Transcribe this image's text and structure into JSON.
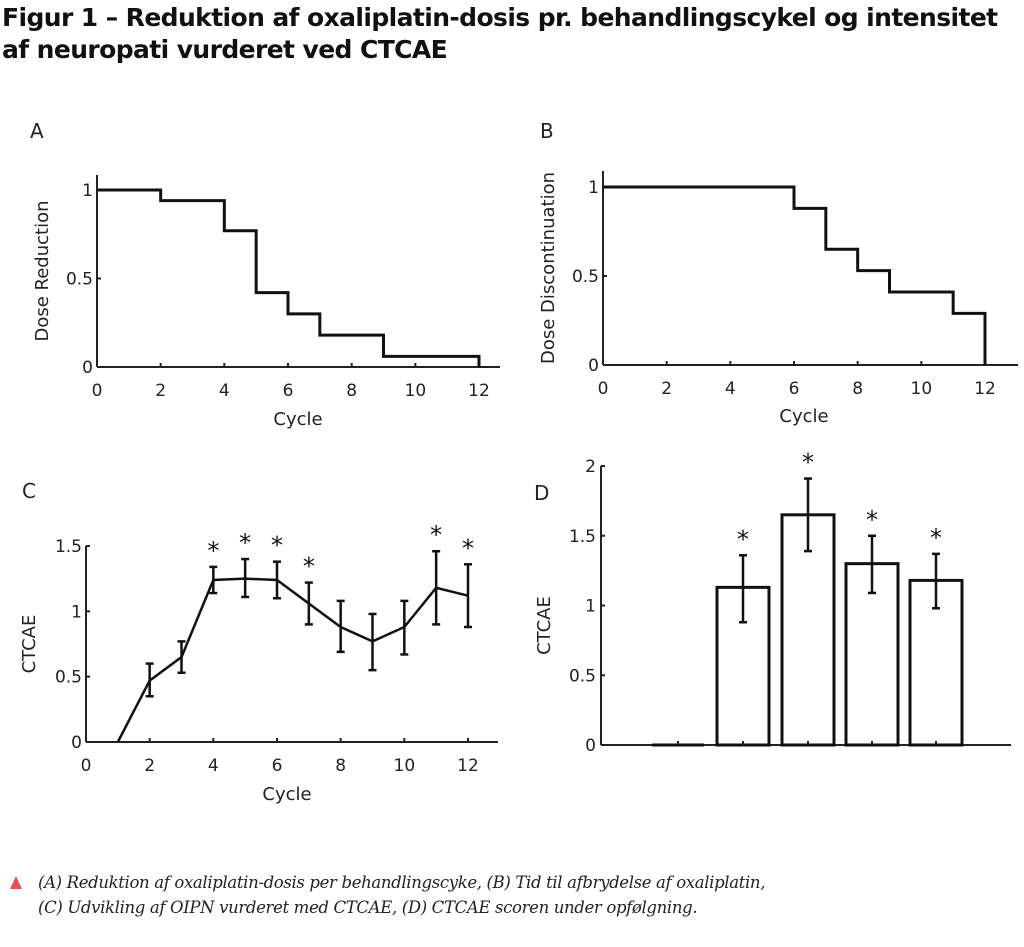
{
  "title": "Figur 1 – Reduktion af oxaliplatin-dosis pr. behandlingscykel og intensitet af neuropati vurderet ved CTCAE",
  "caption": {
    "line1": "(A) Reduktion af oxaliplatin-dosis per behandlingscyke, (B) Tid til afbrydelse af oxaliplatin,",
    "line2": "(C) Udvikling af OIPN vurderet med CTCAE, (D) CTCAE scoren under opfølgning.",
    "marker_icon": "triangle-up-icon",
    "marker_color": "#e8505b"
  },
  "chart_data": [
    {
      "panel": "A",
      "type": "line",
      "step": true,
      "title": "",
      "xlabel": "Cycle",
      "ylabel": "Dose Reduction",
      "xlim": [
        0,
        12.8
      ],
      "ylim": [
        0,
        1.08
      ],
      "xticks": [
        0,
        2,
        4,
        6,
        8,
        10,
        12
      ],
      "xtick_labels": [
        "0",
        "2",
        "4",
        "6",
        "8",
        "10",
        "12"
      ],
      "yticks": [
        0,
        0.5,
        1
      ],
      "ytick_labels": [
        "0",
        "0.5",
        "1"
      ],
      "x": [
        0,
        2,
        4,
        5,
        6,
        7,
        9,
        12
      ],
      "y": [
        1,
        0.94,
        0.77,
        0.42,
        0.3,
        0.18,
        0.06,
        0
      ],
      "grid": false
    },
    {
      "panel": "B",
      "type": "line",
      "step": true,
      "title": "",
      "xlabel": "Cycle",
      "ylabel": "Dose Discontinuation",
      "xlim": [
        0,
        12.8
      ],
      "ylim": [
        0,
        1.08
      ],
      "xticks": [
        0,
        2,
        4,
        6,
        8,
        10,
        12
      ],
      "xtick_labels": [
        "0",
        "2",
        "4",
        "6",
        "8",
        "10",
        "12"
      ],
      "yticks": [
        0,
        0.5,
        1
      ],
      "ytick_labels": [
        "0",
        "0.5",
        "1"
      ],
      "x": [
        0,
        6,
        7,
        8,
        9,
        11,
        12
      ],
      "y": [
        1,
        0.88,
        0.65,
        0.53,
        0.41,
        0.29,
        0
      ],
      "grid": false
    },
    {
      "panel": "C",
      "type": "line",
      "title": "",
      "xlabel": "Cycle",
      "ylabel": "CTCAE",
      "xlim": [
        0,
        12.8
      ],
      "ylim": [
        0,
        1.5
      ],
      "xticks": [
        0,
        2,
        4,
        6,
        8,
        10,
        12
      ],
      "xtick_labels": [
        "0",
        "2",
        "4",
        "6",
        "8",
        "10",
        "12"
      ],
      "yticks": [
        0,
        0.5,
        1,
        1.5
      ],
      "ytick_labels": [
        "0",
        "0.5",
        "1",
        "1.5"
      ],
      "x": [
        1,
        2,
        3,
        4,
        5,
        6,
        7,
        8,
        9,
        10,
        11,
        12
      ],
      "y": [
        0,
        0.47,
        0.65,
        1.24,
        1.25,
        1.24,
        1.06,
        0.88,
        0.77,
        0.88,
        1.18,
        1.12
      ],
      "err_low": [
        null,
        0.35,
        0.53,
        1.14,
        1.11,
        1.1,
        0.9,
        0.69,
        0.55,
        0.67,
        0.9,
        0.88
      ],
      "err_high": [
        null,
        0.6,
        0.77,
        1.34,
        1.4,
        1.38,
        1.22,
        1.08,
        0.98,
        1.08,
        1.46,
        1.36
      ],
      "significant": [
        false,
        false,
        false,
        true,
        true,
        true,
        true,
        false,
        false,
        false,
        true,
        true
      ],
      "significance_label": "*",
      "grid": false
    },
    {
      "panel": "D",
      "type": "bar",
      "title": "",
      "xlabel": "",
      "ylabel": "CTCAE",
      "ylim": [
        0,
        2
      ],
      "yticks": [
        0,
        0.5,
        1,
        1.5,
        2
      ],
      "ytick_labels": [
        "0",
        "0.5",
        "1",
        "1.5",
        "2"
      ],
      "categories": [
        "",
        "",
        "",
        "",
        ""
      ],
      "values": [
        0,
        1.13,
        1.65,
        1.3,
        1.18
      ],
      "err_low": [
        null,
        0.88,
        1.39,
        1.09,
        0.98
      ],
      "err_high": [
        null,
        1.36,
        1.91,
        1.5,
        1.37
      ],
      "significant": [
        false,
        true,
        true,
        true,
        true
      ],
      "significance_label": "*",
      "grid": false
    }
  ]
}
